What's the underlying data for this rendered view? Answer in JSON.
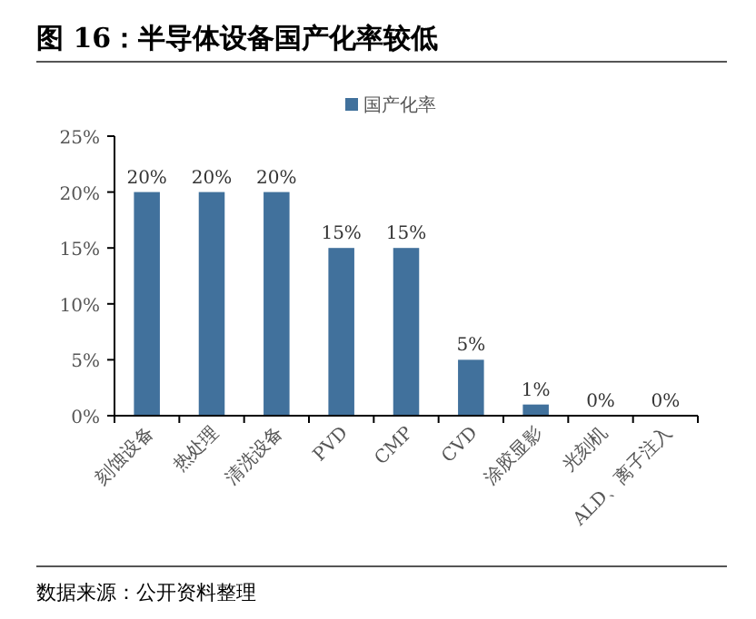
{
  "chart_data": {
    "type": "bar",
    "title": "图 16：半导体设备国产化率较低",
    "categories": [
      "刻蚀设备",
      "热处理",
      "清洗设备",
      "PVD",
      "CMP",
      "CVD",
      "涂胶显影",
      "光刻机",
      "ALD、离子注入"
    ],
    "series": [
      {
        "name": "国产化率",
        "color": "#41719c",
        "values": [
          20,
          20,
          20,
          15,
          15,
          5,
          1,
          0,
          0
        ]
      }
    ],
    "value_labels": [
      "20%",
      "20%",
      "20%",
      "15%",
      "15%",
      "5%",
      "1%",
      "0%",
      "0%"
    ],
    "ylim": [
      0,
      25
    ],
    "yticks": [
      {
        "value": 0,
        "label": "0%"
      },
      {
        "value": 5,
        "label": "5%"
      },
      {
        "value": 10,
        "label": "10%"
      },
      {
        "value": 15,
        "label": "15%"
      },
      {
        "value": 20,
        "label": "20%"
      },
      {
        "value": 25,
        "label": "25%"
      }
    ],
    "legend": "top",
    "grid": false,
    "annotations": [
      "数据来源：公开资料整理"
    ]
  }
}
